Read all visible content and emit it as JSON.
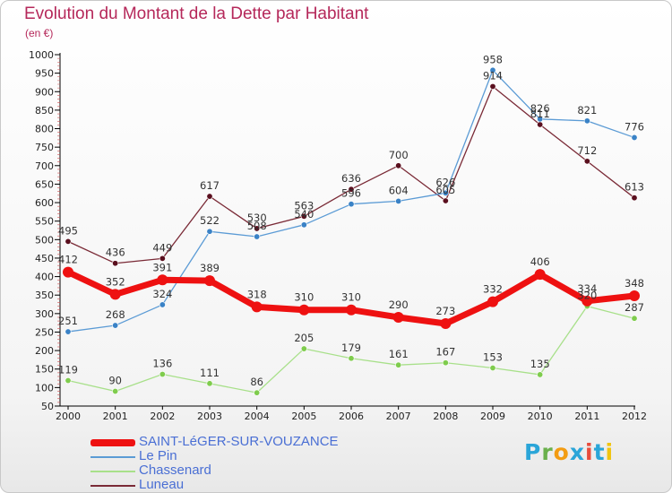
{
  "title": "Evolution du Montant de la Dette par Habitant",
  "unit_label": "(en €)",
  "logo_letters": [
    "P",
    "r",
    "o",
    "x",
    "i",
    "t",
    "i"
  ],
  "chart_data": {
    "type": "line",
    "x": [
      2000,
      2001,
      2002,
      2003,
      2004,
      2005,
      2006,
      2007,
      2008,
      2009,
      2010,
      2011,
      2012
    ],
    "ylim": [
      50,
      1000
    ],
    "yticks": [
      50,
      100,
      150,
      200,
      250,
      300,
      350,
      400,
      450,
      500,
      550,
      600,
      650,
      700,
      750,
      800,
      850,
      900,
      950,
      1000
    ],
    "grid": false,
    "legend_position": "bottom-left",
    "series": [
      {
        "name": "Luneau",
        "color": "#7a2a36",
        "marker": "#5a0f1e",
        "width": 1.3,
        "values": [
          495,
          436,
          449,
          617,
          530,
          563,
          636,
          700,
          605,
          914,
          811,
          712,
          613
        ]
      },
      {
        "name": "Le Pin",
        "color": "#5b9bd5",
        "marker": "#3a82c6",
        "width": 1.3,
        "values": [
          251,
          268,
          324,
          522,
          508,
          540,
          596,
          604,
          626,
          958,
          826,
          821,
          776
        ]
      },
      {
        "name": "Chassenard",
        "color": "#a8e08a",
        "marker": "#7fcc4d",
        "width": 1.3,
        "values": [
          119,
          90,
          136,
          111,
          86,
          205,
          179,
          161,
          167,
          153,
          135,
          320,
          287
        ]
      },
      {
        "name": "SAINT-LéGER-SUR-VOUZANCE",
        "color": "#ee1111",
        "marker": "#ee1111",
        "width": 7,
        "values": [
          412,
          352,
          391,
          389,
          318,
          310,
          310,
          290,
          273,
          332,
          406,
          334,
          348
        ]
      }
    ]
  },
  "legend": [
    {
      "label": "SAINT-LéGER-SUR-VOUZANCE",
      "color": "#ee1111",
      "thickness": 8
    },
    {
      "label": "Le Pin",
      "color": "#5b9bd5",
      "thickness": 2
    },
    {
      "label": "Chassenard",
      "color": "#a8e08a",
      "thickness": 2
    },
    {
      "label": "Luneau",
      "color": "#7a2a36",
      "thickness": 2
    }
  ]
}
